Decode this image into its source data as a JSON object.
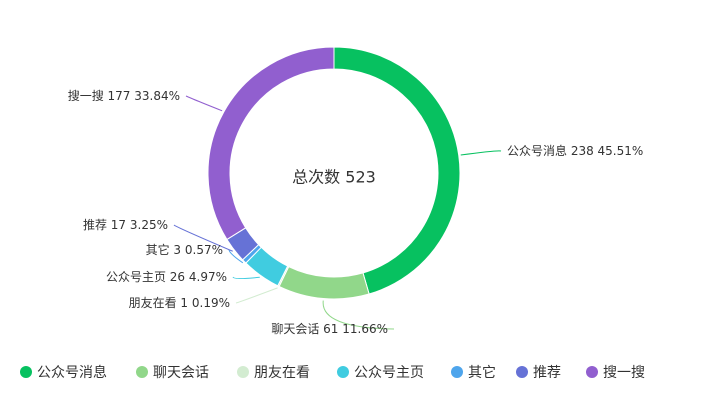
{
  "chart_data": {
    "type": "pie",
    "variant": "donut",
    "center_text": "总次数 523",
    "legend_placement": "bottom",
    "slices": [
      {
        "name": "公众号消息",
        "value": 238,
        "percent": "45.51%",
        "label": "公众号消息 238 45.51%",
        "color": "#07c160"
      },
      {
        "name": "聊天会话",
        "value": 61,
        "percent": "11.66%",
        "label": "聊天会话 61 11.66%",
        "color": "#91d78a"
      },
      {
        "name": "朋友在看",
        "value": 1,
        "percent": "0.19%",
        "label": "朋友在看 1 0.19%",
        "color": "#d3ecd1"
      },
      {
        "name": "公众号主页",
        "value": 26,
        "percent": "4.97%",
        "label": "公众号主页 26 4.97%",
        "color": "#40cce0"
      },
      {
        "name": "其它",
        "value": 3,
        "percent": "0.57%",
        "label": "其它 3 0.57%",
        "color": "#4ea5ec"
      },
      {
        "name": "推荐",
        "value": 17,
        "percent": "3.25%",
        "label": "推荐 17 3.25%",
        "color": "#6672d6"
      },
      {
        "name": "搜一搜",
        "value": 177,
        "percent": "33.84%",
        "label": "搜一搜 177 33.84%",
        "color": "#915fcf"
      }
    ]
  }
}
